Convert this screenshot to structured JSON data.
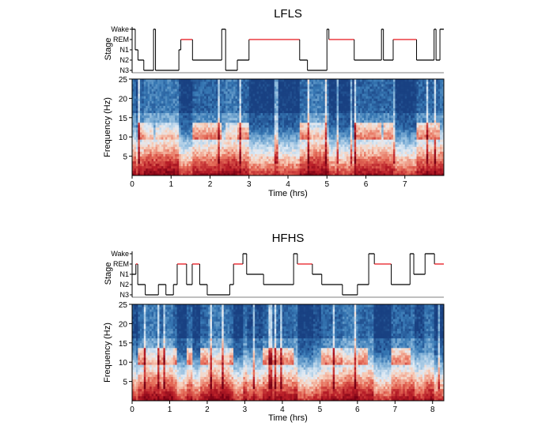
{
  "chart_data": [
    {
      "type": "heatmap",
      "title": "LFLS",
      "hypnogram": {
        "ylabel": "Stage",
        "stages": [
          "Wake",
          "REM",
          "N1",
          "N2",
          "N3"
        ],
        "rem_color": "#e8141b",
        "line_color": "#000000",
        "segments": [
          {
            "start": 0.0,
            "end": 0.08,
            "stage": "Wake"
          },
          {
            "start": 0.08,
            "end": 0.15,
            "stage": "N1"
          },
          {
            "start": 0.15,
            "end": 0.3,
            "stage": "N2"
          },
          {
            "start": 0.3,
            "end": 0.55,
            "stage": "N3"
          },
          {
            "start": 0.55,
            "end": 0.6,
            "stage": "Wake"
          },
          {
            "start": 0.6,
            "end": 1.2,
            "stage": "N3"
          },
          {
            "start": 1.2,
            "end": 1.25,
            "stage": "N1"
          },
          {
            "start": 1.25,
            "end": 1.55,
            "stage": "REM"
          },
          {
            "start": 1.55,
            "end": 2.3,
            "stage": "N2"
          },
          {
            "start": 2.3,
            "end": 2.4,
            "stage": "Wake"
          },
          {
            "start": 2.4,
            "end": 2.7,
            "stage": "N3"
          },
          {
            "start": 2.7,
            "end": 3.0,
            "stage": "N2"
          },
          {
            "start": 3.0,
            "end": 4.3,
            "stage": "REM"
          },
          {
            "start": 4.3,
            "end": 4.5,
            "stage": "N2"
          },
          {
            "start": 4.5,
            "end": 5.0,
            "stage": "N3"
          },
          {
            "start": 5.0,
            "end": 5.05,
            "stage": "Wake"
          },
          {
            "start": 5.05,
            "end": 5.7,
            "stage": "REM"
          },
          {
            "start": 5.7,
            "end": 6.4,
            "stage": "N2"
          },
          {
            "start": 6.4,
            "end": 6.45,
            "stage": "Wake"
          },
          {
            "start": 6.45,
            "end": 6.7,
            "stage": "N2"
          },
          {
            "start": 6.7,
            "end": 7.3,
            "stage": "REM"
          },
          {
            "start": 7.3,
            "end": 7.75,
            "stage": "N2"
          },
          {
            "start": 7.75,
            "end": 7.8,
            "stage": "Wake"
          },
          {
            "start": 7.8,
            "end": 7.9,
            "stage": "N2"
          },
          {
            "start": 7.9,
            "end": 8.0,
            "stage": "Wake"
          }
        ]
      },
      "spectrogram": {
        "xlabel": "Time (hrs)",
        "ylabel": "Frequency (Hz)",
        "xlim": [
          0,
          8.0
        ],
        "ylim": [
          0,
          25
        ],
        "xticks": [
          0,
          1,
          2,
          3,
          4,
          5,
          6,
          7
        ],
        "yticks": [
          5,
          10,
          15,
          20,
          25
        ],
        "colormap": "blue-white-red"
      }
    },
    {
      "type": "heatmap",
      "title": "HFHS",
      "hypnogram": {
        "ylabel": "Stage",
        "stages": [
          "Wake",
          "REM",
          "N1",
          "N2",
          "N3"
        ],
        "rem_color": "#e8141b",
        "line_color": "#000000",
        "segments": [
          {
            "start": 0.0,
            "end": 0.1,
            "stage": "N1"
          },
          {
            "start": 0.1,
            "end": 0.15,
            "stage": "REM"
          },
          {
            "start": 0.15,
            "end": 0.35,
            "stage": "N2"
          },
          {
            "start": 0.35,
            "end": 0.7,
            "stage": "N3"
          },
          {
            "start": 0.7,
            "end": 0.9,
            "stage": "N2"
          },
          {
            "start": 0.9,
            "end": 1.1,
            "stage": "N3"
          },
          {
            "start": 1.1,
            "end": 1.2,
            "stage": "N2"
          },
          {
            "start": 1.2,
            "end": 1.45,
            "stage": "REM"
          },
          {
            "start": 1.45,
            "end": 1.6,
            "stage": "N2"
          },
          {
            "start": 1.6,
            "end": 1.8,
            "stage": "REM"
          },
          {
            "start": 1.8,
            "end": 2.0,
            "stage": "N2"
          },
          {
            "start": 2.0,
            "end": 2.6,
            "stage": "N3"
          },
          {
            "start": 2.6,
            "end": 2.7,
            "stage": "N2"
          },
          {
            "start": 2.7,
            "end": 2.95,
            "stage": "REM"
          },
          {
            "start": 2.95,
            "end": 3.05,
            "stage": "Wake"
          },
          {
            "start": 3.05,
            "end": 3.5,
            "stage": "N1"
          },
          {
            "start": 3.5,
            "end": 4.3,
            "stage": "N2"
          },
          {
            "start": 4.3,
            "end": 4.4,
            "stage": "Wake"
          },
          {
            "start": 4.4,
            "end": 4.8,
            "stage": "REM"
          },
          {
            "start": 4.8,
            "end": 5.05,
            "stage": "N1"
          },
          {
            "start": 5.05,
            "end": 5.6,
            "stage": "N2"
          },
          {
            "start": 5.6,
            "end": 6.0,
            "stage": "N3"
          },
          {
            "start": 6.0,
            "end": 6.3,
            "stage": "N2"
          },
          {
            "start": 6.3,
            "end": 6.45,
            "stage": "Wake"
          },
          {
            "start": 6.45,
            "end": 6.9,
            "stage": "REM"
          },
          {
            "start": 6.9,
            "end": 7.4,
            "stage": "N2"
          },
          {
            "start": 7.4,
            "end": 7.5,
            "stage": "Wake"
          },
          {
            "start": 7.5,
            "end": 7.8,
            "stage": "N1"
          },
          {
            "start": 7.8,
            "end": 8.05,
            "stage": "Wake"
          },
          {
            "start": 8.05,
            "end": 8.3,
            "stage": "REM"
          }
        ]
      },
      "spectrogram": {
        "xlabel": "Time (hrs)",
        "ylabel": "Frequency (Hz)",
        "xlim": [
          0,
          8.3
        ],
        "ylim": [
          0,
          25
        ],
        "xticks": [
          0,
          1,
          2,
          3,
          4,
          5,
          6,
          7,
          8
        ],
        "yticks": [
          5,
          10,
          15,
          20,
          25
        ],
        "colormap": "blue-white-red"
      }
    }
  ]
}
